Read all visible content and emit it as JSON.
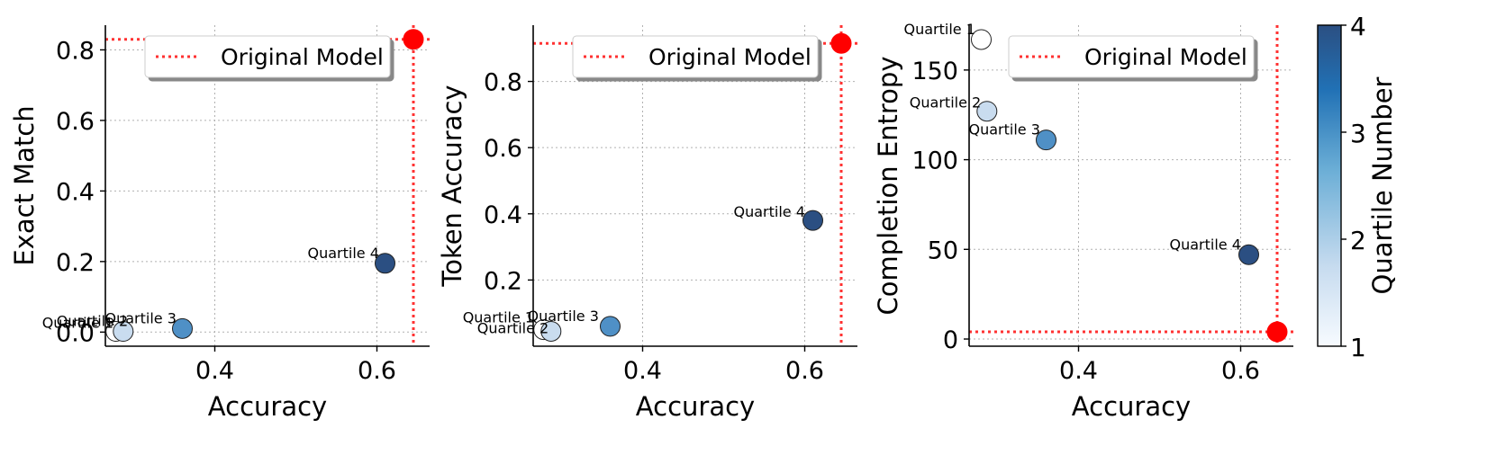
{
  "chart_data": [
    {
      "type": "scatter",
      "xlabel": "Accuracy",
      "ylabel": "Exact Match",
      "xlim": [
        0.265,
        0.665
      ],
      "ylim": [
        -0.04,
        0.87
      ],
      "xticks": [
        0.4,
        0.6
      ],
      "yticks": [
        0.0,
        0.2,
        0.4,
        0.6,
        0.8
      ],
      "grid": "dotted",
      "points": [
        {
          "label": "Quartile 1",
          "x": 0.278,
          "y": 0.002,
          "quartile": 1
        },
        {
          "label": "Quartile 2",
          "x": 0.287,
          "y": 0.002,
          "quartile": 2
        },
        {
          "label": "Quartile 3",
          "x": 0.36,
          "y": 0.01,
          "quartile": 3
        },
        {
          "label": "Quartile 4",
          "x": 0.61,
          "y": 0.195,
          "quartile": 4
        }
      ],
      "reference": {
        "label": "Original Model",
        "x": 0.645,
        "y": 0.83
      },
      "legend": {
        "entries": [
          "Original Model"
        ],
        "placement": "upper-right"
      }
    },
    {
      "type": "scatter",
      "xlabel": "Accuracy",
      "ylabel": "Token Accuracy",
      "xlim": [
        0.265,
        0.665
      ],
      "ylim": [
        0.0,
        0.97
      ],
      "xticks": [
        0.4,
        0.6
      ],
      "yticks": [
        0.2,
        0.4,
        0.6,
        0.8
      ],
      "grid": "dotted",
      "points": [
        {
          "label": "Quartile 1",
          "x": 0.278,
          "y": 0.05,
          "quartile": 1
        },
        {
          "label": "Quartile 2",
          "x": 0.287,
          "y": 0.045,
          "quartile": 2
        },
        {
          "label": "Quartile 3",
          "x": 0.36,
          "y": 0.06,
          "quartile": 3
        },
        {
          "label": "Quartile 4",
          "x": 0.61,
          "y": 0.38,
          "quartile": 4
        }
      ],
      "reference": {
        "label": "Original Model",
        "x": 0.645,
        "y": 0.915
      },
      "legend": {
        "entries": [
          "Original Model"
        ],
        "placement": "upper-right"
      }
    },
    {
      "type": "scatter",
      "xlabel": "Accuracy",
      "ylabel": "Completion Entropy",
      "xlim": [
        0.265,
        0.665
      ],
      "ylim": [
        -4,
        175
      ],
      "xticks": [
        0.4,
        0.6
      ],
      "yticks": [
        0,
        50,
        100,
        150
      ],
      "grid": "dotted",
      "points": [
        {
          "label": "Quartile 1",
          "x": 0.28,
          "y": 167,
          "quartile": 1
        },
        {
          "label": "Quartile 2",
          "x": 0.287,
          "y": 127,
          "quartile": 2
        },
        {
          "label": "Quartile 3",
          "x": 0.36,
          "y": 111,
          "quartile": 3
        },
        {
          "label": "Quartile 4",
          "x": 0.61,
          "y": 47,
          "quartile": 4
        }
      ],
      "reference": {
        "label": "Original Model",
        "x": 0.645,
        "y": 4
      },
      "legend": {
        "entries": [
          "Original Model"
        ],
        "placement": "upper-right"
      }
    }
  ],
  "colorbar": {
    "label": "Quartile Number",
    "min": 1,
    "max": 4,
    "ticks": [
      1,
      2,
      3,
      4
    ],
    "colors": [
      "#f7fbff",
      "#c6dbef",
      "#6baed6",
      "#2171b5",
      "#08306b"
    ],
    "point_colors": [
      "#ffffff",
      "#c9dcef",
      "#4f90c6",
      "#2b4f82"
    ]
  },
  "style": {
    "reference_color": "#ff0000",
    "grid_color": "#b0b0b0"
  }
}
